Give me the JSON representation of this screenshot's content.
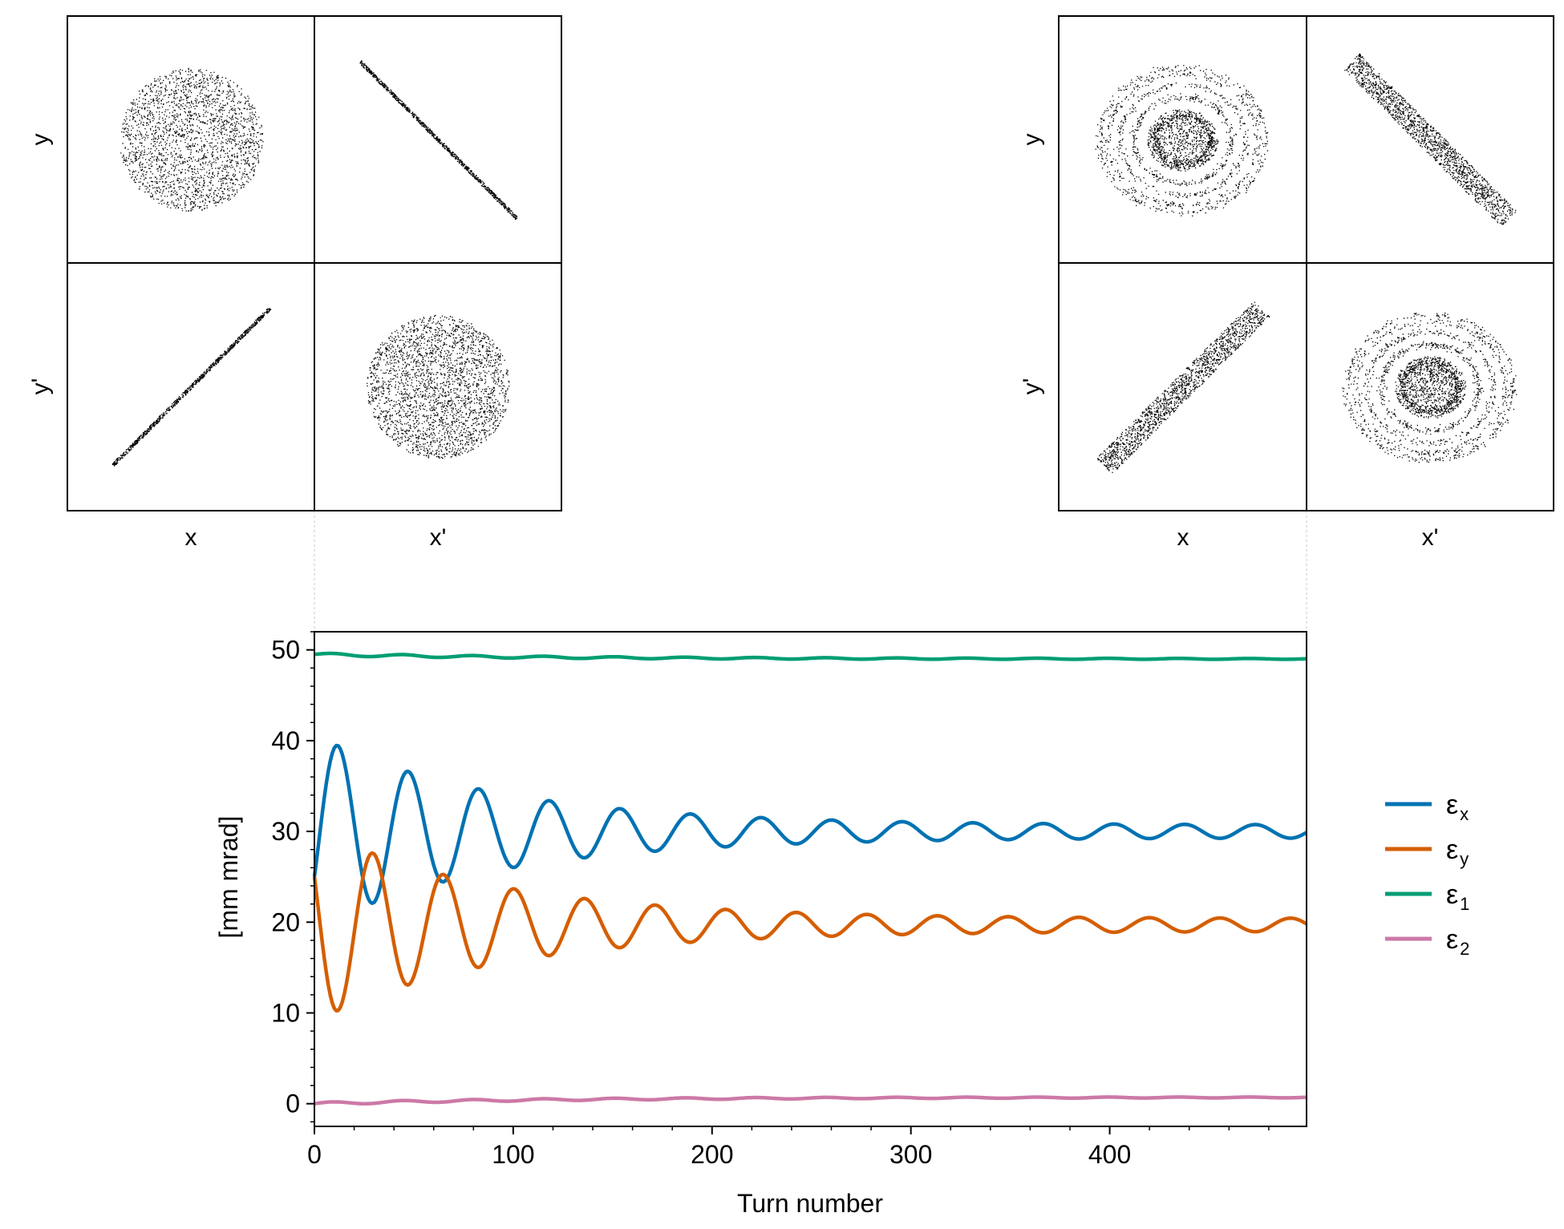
{
  "colors": {
    "ex": "#0072B2",
    "ey": "#D55E00",
    "e1": "#009E73",
    "e2": "#CC79A7",
    "scatter": "#000000"
  },
  "corner_initial": {
    "xlabels": [
      "x",
      "x'"
    ],
    "ylabels": [
      "y",
      "y'"
    ]
  },
  "corner_final": {
    "xlabels": [
      "x",
      "x'"
    ],
    "ylabels": [
      "y",
      "y'"
    ]
  },
  "chart_data": [
    {
      "type": "scatter",
      "name": "corner-initial",
      "panels": [
        {
          "row": 0,
          "col": 0,
          "shape": "uniform-disk",
          "center": [
            0,
            0
          ],
          "radius": 1.0,
          "points": 2200
        },
        {
          "row": 0,
          "col": 1,
          "shape": "thin-line",
          "slope": -1,
          "half_length": 1.0,
          "points": 900
        },
        {
          "row": 1,
          "col": 0,
          "shape": "thin-line",
          "slope": 1,
          "half_length": 1.0,
          "points": 900
        },
        {
          "row": 1,
          "col": 1,
          "shape": "uniform-disk",
          "center": [
            0,
            0
          ],
          "radius": 1.0,
          "points": 2600
        }
      ],
      "xlabels": [
        "x",
        "x'"
      ],
      "ylabels": [
        "y",
        "y'"
      ]
    },
    {
      "type": "scatter",
      "name": "corner-final",
      "panels": [
        {
          "row": 0,
          "col": 0,
          "shape": "filamented-disk",
          "center": [
            0,
            0
          ],
          "radius": 1.0,
          "points": 2400
        },
        {
          "row": 0,
          "col": 1,
          "shape": "thick-band",
          "slope": -1,
          "half_length": 1.0,
          "width": 0.12,
          "points": 1600
        },
        {
          "row": 1,
          "col": 0,
          "shape": "thick-band",
          "slope": 1,
          "half_length": 1.0,
          "width": 0.12,
          "points": 1600
        },
        {
          "row": 1,
          "col": 1,
          "shape": "filamented-disk",
          "center": [
            0,
            0
          ],
          "radius": 1.0,
          "points": 2600
        }
      ],
      "xlabels": [
        "x",
        "x'"
      ],
      "ylabels": [
        "y",
        "y'"
      ]
    },
    {
      "type": "line",
      "xlabel": "Turn number",
      "ylabel": "[mm mrad]",
      "xlim": [
        0,
        499
      ],
      "ylim": [
        -2.5,
        52
      ],
      "xticks": [
        0,
        100,
        200,
        300,
        400
      ],
      "yticks": [
        0,
        10,
        20,
        30,
        40,
        50
      ],
      "legend": "right",
      "series": [
        {
          "name": "ε_x",
          "label": "εx",
          "label_main": "ε",
          "label_sub": "x",
          "color": "#0072B2",
          "model": {
            "base": 30,
            "start": 25,
            "amp0": 10,
            "decay": 90,
            "floor_amp": 0.7,
            "period": 35.5
          }
        },
        {
          "name": "ε_y",
          "label": "εy",
          "label_main": "ε",
          "label_sub": "y",
          "color": "#D55E00",
          "model": {
            "base": 19.7,
            "start": 25,
            "amp0": -10,
            "decay": 90,
            "floor_amp": -0.7,
            "period": 35.5
          }
        },
        {
          "name": "ε_1",
          "label": "ε1",
          "label_main": "ε",
          "label_sub": "1",
          "color": "#009E73",
          "model": {
            "start": 49.5,
            "end": 49.0,
            "ripple": 0.15,
            "period": 35.5
          }
        },
        {
          "name": "ε_2",
          "label": "ε2",
          "label_main": "ε",
          "label_sub": "2",
          "color": "#CC79A7",
          "model": {
            "start": 0.0,
            "end": 0.7,
            "ripple": 0.15,
            "period": 35.5
          }
        }
      ]
    }
  ]
}
